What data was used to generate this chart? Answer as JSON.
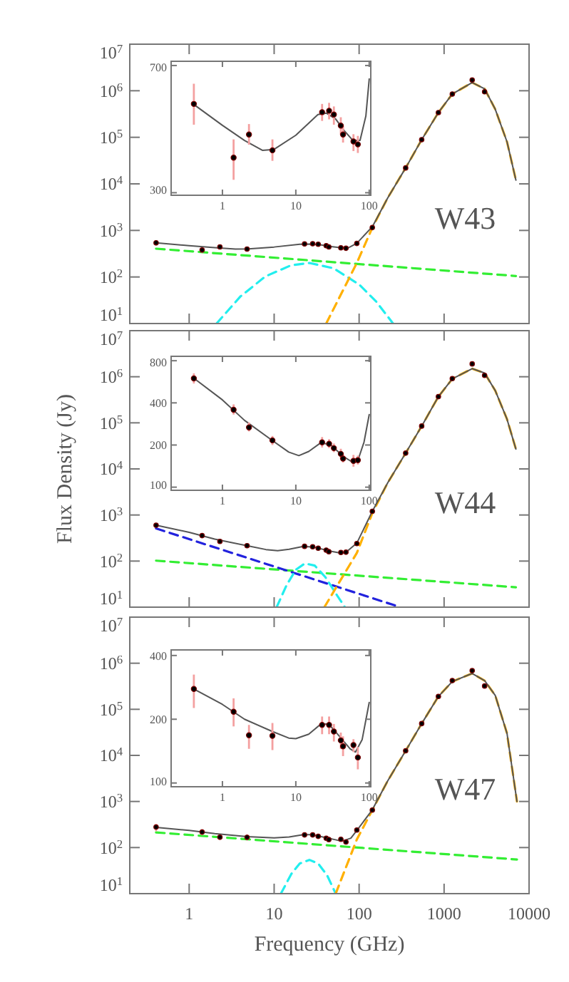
{
  "chart_data": [
    {
      "type": "line",
      "log": "xy",
      "xlim": [
        0.2,
        10000
      ],
      "ylim": [
        10,
        10000000
      ],
      "xticks": [
        1,
        10,
        100,
        1000,
        10000
      ],
      "yticks": [
        {
          "value": 10,
          "label": "10$^{1}$"
        },
        {
          "value": 100,
          "label": "10$^{2}$"
        },
        {
          "value": 1000,
          "label": "10$^{3}$"
        },
        {
          "value": 10000,
          "label": "10$^{4}$"
        },
        {
          "value": 100000,
          "label": "10$^{5}$"
        },
        {
          "value": 1000000,
          "label": "10$^{6}$"
        },
        {
          "value": 10000000,
          "label": "10$^{7}$"
        }
      ],
      "tick_labels": "y",
      "annotations": [
        "W43"
      ],
      "series": [
        {
          "line_style": "dashed",
          "color": "#33ee33",
          "x": [
            0.408,
            7000
          ],
          "values": [
            405,
            105
          ]
        },
        {
          "line_style": "dashed",
          "color": "#22eeee",
          "x": [
            2.1,
            4,
            7.9,
            15.8,
            26,
            50,
            100,
            158,
            251
          ],
          "values": [
            10,
            38,
            103,
            178,
            200,
            154,
            69,
            30,
            10
          ]
        },
        {
          "line_style": "dashed",
          "color": "#ffb000",
          "x": [
            41,
            94,
            143,
            217,
            353,
            545,
            857,
            1249,
            2141,
            2998,
            4000,
            5500,
            7000
          ],
          "values": [
            10,
            200,
            1150,
            5000,
            22000,
            89000,
            340000,
            850000,
            1500000,
            1100000,
            400000,
            80000,
            12000
          ]
        },
        {
          "line_style": "solid",
          "color": "#555555",
          "x": [
            0.408,
            1,
            2,
            3.5,
            5,
            10,
            20,
            26,
            35,
            45,
            60,
            75,
            94,
            143,
            217,
            353,
            545,
            857,
            1249,
            2141,
            2998,
            4000,
            5500,
            7000
          ],
          "values": [
            540,
            470,
            425,
            398,
            400,
            440,
            505,
            510,
            490,
            455,
            425,
            425,
            530,
            1200,
            5000,
            22000,
            89000,
            340000,
            850000,
            1500000,
            1100000,
            400000,
            80000,
            12000
          ]
        },
        {
          "type": "scatter",
          "marker": "circle",
          "color": "#000000",
          "x": [
            0.408,
            1.42,
            2.3,
            4.8,
            22.8,
            28.4,
            33,
            41,
            44,
            61,
            70,
            94,
            143,
            353,
            545,
            857,
            1249,
            2141,
            2998
          ],
          "values": [
            542,
            379,
            442,
            398,
            513,
            518,
            505,
            469,
            442,
            422,
            414,
            525,
            1150,
            22000,
            89000,
            340000,
            850000,
            1700000,
            950000
          ],
          "errors": [
            [
              472,
              620
            ],
            [
              327,
              428
            ],
            [
              413,
              474
            ],
            [
              371,
              428
            ],
            [
              484,
              542
            ],
            [
              489,
              546
            ],
            [
              472,
              533
            ],
            [
              441,
              496
            ],
            [
              419,
              469
            ],
            [
              396,
              443
            ],
            [
              391,
              438
            ],
            [
              480,
              575
            ],
            [
              1050,
              1260
            ],
            [
              20000,
              24000
            ],
            [
              81000,
              97000
            ],
            [
              310000,
              370000
            ],
            [
              780000,
              930000
            ],
            [
              1550000,
              1850000
            ],
            [
              870000,
              1040000
            ]
          ]
        }
      ]
    },
    {
      "type": "line",
      "log": "xy",
      "xlim": [
        0.2,
        105
      ],
      "ylim": [
        295,
        720
      ],
      "xticks": [
        1,
        10,
        100
      ],
      "yticks": [
        300,
        700
      ],
      "series": [
        {
          "line_style": "solid",
          "color": "#555555",
          "x": [
            0.408,
            1,
            2,
            3.5,
            5,
            10,
            20,
            26,
            35,
            45,
            60,
            75,
            90,
            100
          ],
          "values": [
            540,
            470,
            425,
            398,
            400,
            440,
            505,
            510,
            490,
            455,
            425,
            425,
            500,
            640
          ]
        },
        {
          "type": "scatter",
          "marker": "circle",
          "color": "#000000",
          "x": [
            0.408,
            1.42,
            2.3,
            4.8,
            22.8,
            28.4,
            33,
            41,
            44,
            61,
            70
          ],
          "values": [
            542,
            379,
            442,
            398,
            513,
            518,
            505,
            469,
            442,
            422,
            414
          ],
          "errors": [
            [
              472,
              620
            ],
            [
              327,
              428
            ],
            [
              413,
              474
            ],
            [
              371,
              428
            ],
            [
              484,
              542
            ],
            [
              489,
              546
            ],
            [
              472,
              533
            ],
            [
              441,
              496
            ],
            [
              419,
              469
            ],
            [
              396,
              443
            ],
            [
              391,
              438
            ]
          ]
        }
      ]
    },
    {
      "type": "line",
      "log": "xy",
      "xlim": [
        0.2,
        10000
      ],
      "ylim": [
        10,
        10000000
      ],
      "xticks": [
        1,
        10,
        100,
        1000,
        10000
      ],
      "yticks": [
        {
          "value": 10,
          "label": "10$^{1}$"
        },
        {
          "value": 100,
          "label": "10$^{2}$"
        },
        {
          "value": 1000,
          "label": "10$^{3}$"
        },
        {
          "value": 10000,
          "label": "10$^{4}$"
        },
        {
          "value": 100000,
          "label": "10$^{5}$"
        },
        {
          "value": 1000000,
          "label": "10$^{6}$"
        },
        {
          "value": 10000000,
          "label": "10$^{7}$"
        }
      ],
      "tick_labels": "y",
      "ylabel": "Flux Density (Jy)",
      "annotations": [
        "W44"
      ],
      "series": [
        {
          "line_style": "dashed",
          "color": "#33ee33",
          "x": [
            0.408,
            7000
          ],
          "values": [
            102,
            27
          ]
        },
        {
          "line_style": "dashed",
          "color": "#2222dd",
          "x": [
            0.408,
            306
          ],
          "values": [
            510,
            10
          ]
        },
        {
          "line_style": "dashed",
          "color": "#22eeee",
          "x": [
            10.7,
            14,
            18,
            23,
            30,
            40,
            55,
            68
          ],
          "values": [
            10,
            30,
            65,
            89,
            80,
            45,
            18,
            10
          ]
        },
        {
          "line_style": "dashed",
          "color": "#ffb000",
          "x": [
            39,
            94,
            143,
            217,
            353,
            545,
            857,
            1249,
            2141,
            2998,
            4000,
            5500,
            7000
          ],
          "values": [
            10,
            150,
            1100,
            5000,
            22000,
            85000,
            370000,
            900000,
            1500000,
            1200000,
            500000,
            120000,
            27000
          ]
        },
        {
          "line_style": "solid",
          "color": "#555555",
          "x": [
            0.408,
            1,
            2,
            4.8,
            8,
            11,
            15,
            22,
            30,
            45,
            60,
            70,
            85,
            94,
            143,
            217,
            353,
            545,
            857,
            1249,
            2141,
            2998,
            4000,
            5500,
            7000
          ],
          "values": [
            600,
            420,
            300,
            215,
            178,
            168,
            180,
            208,
            200,
            165,
            150,
            155,
            210,
            245,
            1200,
            5000,
            22000,
            85000,
            370000,
            900000,
            1500000,
            1200000,
            500000,
            120000,
            27000
          ]
        },
        {
          "type": "scatter",
          "marker": "circle",
          "color": "#000000",
          "x": [
            0.408,
            1.42,
            2.3,
            4.8,
            22.8,
            28.4,
            33,
            41,
            44,
            61,
            70,
            94,
            143,
            353,
            545,
            857,
            1249,
            2141,
            2998
          ],
          "values": [
            598,
            357,
            267,
            216,
            209,
            204,
            190,
            173,
            160,
            154,
            156,
            240,
            1200,
            22000,
            85000,
            370000,
            910000,
            1900000,
            1070000
          ],
          "errors": [
            [
              550,
              650
            ],
            [
              330,
              390
            ],
            [
              250,
              290
            ],
            [
              200,
              232
            ],
            [
              192,
              228
            ],
            [
              190,
              220
            ],
            [
              178,
              205
            ],
            [
              160,
              188
            ],
            [
              150,
              172
            ],
            [
              140,
              170
            ],
            [
              145,
              168
            ],
            [
              220,
              265
            ],
            [
              1100,
              1320
            ],
            [
              20000,
              24000
            ],
            [
              78000,
              93000
            ],
            [
              340000,
              400000
            ],
            [
              840000,
              990000
            ],
            [
              1750000,
              2050000
            ],
            [
              980000,
              1170000
            ]
          ]
        }
      ]
    },
    {
      "type": "line",
      "log": "xy",
      "xlim": [
        0.2,
        105
      ],
      "ylim": [
        95,
        860
      ],
      "xticks": [
        1,
        10,
        100
      ],
      "yticks": [
        100,
        200,
        400,
        800
      ],
      "series": [
        {
          "line_style": "solid",
          "color": "#555555",
          "x": [
            0.408,
            1,
            2,
            4.8,
            8,
            11,
            15,
            22,
            30,
            45,
            60,
            70,
            85,
            100
          ],
          "values": [
            600,
            420,
            300,
            215,
            178,
            168,
            180,
            208,
            200,
            165,
            150,
            155,
            210,
            330
          ]
        },
        {
          "type": "scatter",
          "marker": "circle",
          "color": "#000000",
          "x": [
            0.408,
            1.42,
            2.3,
            4.8,
            22.8,
            28.4,
            33,
            41,
            44,
            61,
            70
          ],
          "values": [
            598,
            357,
            267,
            216,
            209,
            204,
            190,
            173,
            160,
            154,
            156
          ],
          "errors": [
            [
              550,
              650
            ],
            [
              330,
              390
            ],
            [
              250,
              290
            ],
            [
              200,
              232
            ],
            [
              192,
              228
            ],
            [
              190,
              220
            ],
            [
              178,
              205
            ],
            [
              160,
              188
            ],
            [
              150,
              172
            ],
            [
              140,
              170
            ],
            [
              145,
              168
            ]
          ]
        }
      ]
    },
    {
      "type": "line",
      "log": "xy",
      "xlim": [
        0.2,
        10000
      ],
      "ylim": [
        10,
        10000000
      ],
      "xticks": [
        1,
        10,
        100,
        1000,
        10000
      ],
      "yticks": [
        {
          "value": 10,
          "label": "10$^{1}$"
        },
        {
          "value": 100,
          "label": "10$^{2}$"
        },
        {
          "value": 1000,
          "label": "10$^{3}$"
        },
        {
          "value": 10000,
          "label": "10$^{4}$"
        },
        {
          "value": 100000,
          "label": "10$^{5}$"
        },
        {
          "value": 1000000,
          "label": "10$^{6}$"
        },
        {
          "value": 10000000,
          "label": "10$^{7}$"
        }
      ],
      "xlabel": "Frequency (GHz)",
      "annotations": [
        "W47"
      ],
      "series": [
        {
          "line_style": "dashed",
          "color": "#33ee33",
          "x": [
            0.408,
            7200
          ],
          "values": [
            213,
            55
          ]
        },
        {
          "line_style": "dashed",
          "color": "#22eeee",
          "x": [
            12,
            16,
            20,
            26,
            33,
            42,
            53
          ],
          "values": [
            10,
            27,
            45,
            54,
            45,
            25,
            10
          ]
        },
        {
          "line_style": "dashed",
          "color": "#ffb000",
          "x": [
            53,
            94,
            143,
            217,
            353,
            545,
            857,
            1249,
            2141,
            2998,
            4000,
            5500,
            7200
          ],
          "values": [
            10,
            150,
            650,
            2800,
            12600,
            49000,
            190000,
            400000,
            600000,
            420000,
            200000,
            30000,
            1000
          ]
        },
        {
          "line_style": "solid",
          "color": "#555555",
          "x": [
            0.408,
            1,
            2,
            4.8,
            10,
            15,
            22,
            28,
            40,
            55,
            65,
            80,
            94,
            143,
            217,
            353,
            545,
            857,
            1249,
            2141,
            2998,
            4000,
            5500,
            7200
          ],
          "values": [
            275,
            235,
            200,
            172,
            162,
            170,
            190,
            190,
            165,
            145,
            140,
            160,
            235,
            660,
            2800,
            12600,
            49000,
            190000,
            400000,
            600000,
            420000,
            200000,
            30000,
            1000
          ]
        },
        {
          "type": "scatter",
          "marker": "circle",
          "color": "#000000",
          "x": [
            0.408,
            1.42,
            2.3,
            4.8,
            22.8,
            28.4,
            33,
            41,
            44,
            61,
            70,
            94,
            143,
            353,
            545,
            857,
            1249,
            2141,
            2998
          ],
          "values": [
            278,
            217,
            168,
            167,
            188,
            188,
            175,
            159,
            149,
            151,
            132,
            240,
            650,
            12600,
            49000,
            190000,
            420000,
            690000,
            320000
          ],
          "errors": [
            [
              226,
              325
            ],
            [
              185,
              251
            ],
            [
              145,
              188
            ],
            [
              143,
              192
            ],
            [
              170,
              206
            ],
            [
              170,
              206
            ],
            [
              157,
              190
            ],
            [
              145,
              173
            ],
            [
              134,
              166
            ],
            [
              140,
              161
            ],
            [
              116,
              148
            ],
            [
              220,
              265
            ],
            [
              590,
              720
            ],
            [
              11500,
              13800
            ],
            [
              44000,
              54000
            ],
            [
              175000,
              210000
            ],
            [
              385000,
              460000
            ],
            [
              630000,
              760000
            ],
            [
              290000,
              350000
            ]
          ]
        }
      ]
    },
    {
      "type": "line",
      "log": "xy",
      "xlim": [
        0.2,
        105
      ],
      "ylim": [
        96,
        425
      ],
      "xticks": [
        1,
        10,
        100
      ],
      "yticks": [
        100,
        200,
        400
      ],
      "series": [
        {
          "line_style": "solid",
          "color": "#555555",
          "x": [
            0.408,
            1,
            2,
            4.8,
            8,
            10,
            15,
            22,
            28,
            40,
            55,
            65,
            80,
            100
          ],
          "values": [
            278,
            235,
            200,
            175,
            163,
            162,
            170,
            190,
            190,
            165,
            145,
            140,
            160,
            240
          ]
        },
        {
          "type": "scatter",
          "marker": "circle",
          "color": "#000000",
          "x": [
            0.408,
            1.42,
            2.3,
            4.8,
            22.8,
            28.4,
            33,
            41,
            44,
            61,
            70
          ],
          "values": [
            278,
            217,
            168,
            167,
            188,
            188,
            175,
            159,
            149,
            151,
            132
          ],
          "errors": [
            [
              226,
              325
            ],
            [
              185,
              251
            ],
            [
              145,
              188
            ],
            [
              143,
              192
            ],
            [
              170,
              206
            ],
            [
              170,
              206
            ],
            [
              157,
              190
            ],
            [
              145,
              173
            ],
            [
              134,
              166
            ],
            [
              140,
              161
            ],
            [
              116,
              148
            ]
          ]
        }
      ]
    }
  ]
}
